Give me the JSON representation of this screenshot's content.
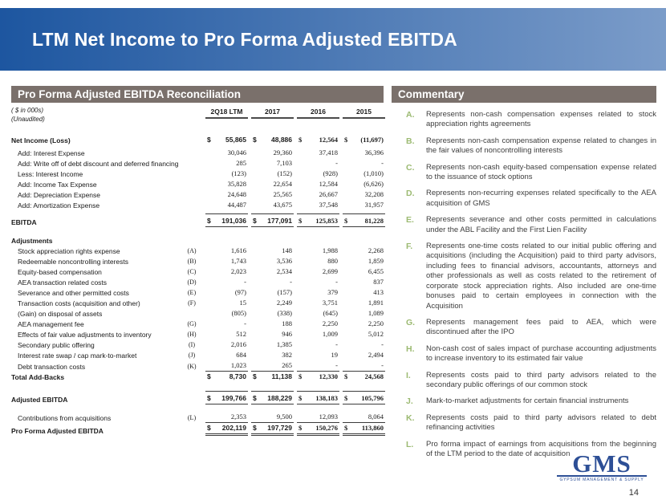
{
  "slide": {
    "title": "LTM Net Income to Pro Forma Adjusted EBITDA"
  },
  "colors": {
    "banner_start": "#1d56a0",
    "banner_end": "#7b9cc9",
    "section_header_bg": "#7a706b",
    "letter_green": "#9cba72",
    "logo_blue": "#2d4f96"
  },
  "table": {
    "header": "Pro Forma Adjusted EBITDA Reconciliation",
    "units_note": "( $ in 000s)",
    "unaudited_note": "(Unaudited)",
    "columns": [
      "2Q18 LTM",
      "2017",
      "2016",
      "2015"
    ],
    "rows": [
      {
        "type": "spacer",
        "h": 12
      },
      {
        "type": "data",
        "label": "Net Income (Loss)",
        "letter": "",
        "values": [
          "55,865",
          "48,886",
          "12,564",
          "(11,697)"
        ],
        "dollar": true,
        "bold": true
      },
      {
        "type": "spacer",
        "h": 3
      },
      {
        "type": "data",
        "label": "Add: Interest Expense",
        "letter": "",
        "indent": 1,
        "values": [
          "30,046",
          "29,360",
          "37,418",
          "36,396"
        ]
      },
      {
        "type": "data",
        "label": "Add: Write off of debt discount and deferred financing fees",
        "letter": "",
        "indent": 1,
        "values": [
          "285",
          "7,103",
          "-",
          "-"
        ]
      },
      {
        "type": "data",
        "label": "Less: Interest Income",
        "letter": "",
        "indent": 1,
        "values": [
          "(123)",
          "(152)",
          "(928)",
          "(1,010)"
        ]
      },
      {
        "type": "data",
        "label": "Add: Income Tax Expense",
        "letter": "",
        "indent": 1,
        "values": [
          "35,828",
          "22,654",
          "12,584",
          "(6,626)"
        ]
      },
      {
        "type": "data",
        "label": "Add: Depreciation Expense",
        "letter": "",
        "indent": 1,
        "values": [
          "24,648",
          "25,565",
          "26,667",
          "32,208"
        ]
      },
      {
        "type": "data",
        "label": "Add: Amortization Expense",
        "letter": "",
        "indent": 1,
        "values": [
          "44,487",
          "43,675",
          "37,548",
          "31,957"
        ]
      },
      {
        "type": "data",
        "label": "EBITDA",
        "letter": "",
        "values": [
          "191,036",
          "177,091",
          "125,853",
          "81,228"
        ],
        "dollar": true,
        "bold": true,
        "rule_above": true,
        "rule_below": true,
        "mt": 4
      },
      {
        "type": "spacer",
        "h": 10
      },
      {
        "type": "section",
        "label": "Adjustments"
      },
      {
        "type": "data",
        "label": "Stock appreciation rights expense",
        "letter": "(A)",
        "indent": 1,
        "values": [
          "1,616",
          "148",
          "1,988",
          "2,268"
        ]
      },
      {
        "type": "data",
        "label": "Redeemable noncontrolling interests",
        "letter": "(B)",
        "indent": 1,
        "values": [
          "1,743",
          "3,536",
          "880",
          "1,859"
        ]
      },
      {
        "type": "data",
        "label": "Equity-based compensation",
        "letter": "(C)",
        "indent": 1,
        "values": [
          "2,023",
          "2,534",
          "2,699",
          "6,455"
        ]
      },
      {
        "type": "data",
        "label": "AEA transaction related costs",
        "letter": "(D)",
        "indent": 1,
        "values": [
          "-",
          "-",
          "-",
          "837"
        ]
      },
      {
        "type": "data",
        "label": "Severance and other permitted costs",
        "letter": "(E)",
        "indent": 1,
        "values": [
          "(97)",
          "(157)",
          "379",
          "413"
        ]
      },
      {
        "type": "data",
        "label": "Transaction costs (acquisition and other)",
        "letter": "(F)",
        "indent": 1,
        "values": [
          "15",
          "2,249",
          "3,751",
          "1,891"
        ]
      },
      {
        "type": "data",
        "label": "(Gain) on disposal of assets",
        "letter": "",
        "indent": 1,
        "values": [
          "(805)",
          "(338)",
          "(645)",
          "1,089"
        ]
      },
      {
        "type": "data",
        "label": "AEA management fee",
        "letter": "(G)",
        "indent": 1,
        "values": [
          "-",
          "188",
          "2,250",
          "2,250"
        ]
      },
      {
        "type": "data",
        "label": "Effects of fair value adjustments to inventory",
        "letter": "(H)",
        "indent": 1,
        "values": [
          "512",
          "946",
          "1,009",
          "5,012"
        ]
      },
      {
        "type": "data",
        "label": "Secondary public offering",
        "letter": "(I)",
        "indent": 1,
        "values": [
          "2,016",
          "1,385",
          "-",
          "-"
        ]
      },
      {
        "type": "data",
        "label": "Interest rate swap / cap mark-to-market",
        "letter": "(J)",
        "indent": 1,
        "values": [
          "684",
          "382",
          "19",
          "2,494"
        ]
      },
      {
        "type": "data",
        "label": "Debt transaction costs",
        "letter": "(K)",
        "indent": 1,
        "values": [
          "1,023",
          "265",
          "-",
          "-"
        ],
        "rule_below": true
      },
      {
        "type": "data",
        "label": "Total Add-Backs",
        "letter": "",
        "values": [
          "8,730",
          "11,138",
          "12,330",
          "24,568"
        ],
        "dollar": true,
        "bold": true
      },
      {
        "type": "spacer",
        "h": 11
      },
      {
        "type": "data",
        "label": "Adjusted EBITDA",
        "letter": "",
        "values": [
          "199,766",
          "188,229",
          "138,183",
          "105,796"
        ],
        "dollar": true,
        "bold": true,
        "rule_above": true,
        "rule_below": true
      },
      {
        "type": "spacer",
        "h": 9
      },
      {
        "type": "data",
        "label": "Contributions from acquisitions",
        "letter": "(L)",
        "indent": 1,
        "values": [
          "2,353",
          "9,500",
          "12,093",
          "8,064"
        ],
        "rule_below": true
      },
      {
        "type": "data",
        "label": "Pro Forma Adjusted EBITDA",
        "letter": "",
        "values": [
          "202,119",
          "197,729",
          "150,276",
          "113,860"
        ],
        "dollar": true,
        "bold": true,
        "double_below": true
      }
    ]
  },
  "commentary": {
    "header": "Commentary",
    "items": [
      {
        "letter": "A.",
        "text": "Represents non-cash compensation expenses related to stock appreciation rights agreements"
      },
      {
        "letter": "B.",
        "text": "Represents non-cash compensation expense related to changes in the fair values of noncontrolling interests"
      },
      {
        "letter": "C.",
        "text": "Represents non-cash equity-based compensation expense related to the issuance of stock options"
      },
      {
        "letter": "D.",
        "text": "Represents non-recurring expenses related specifically to the AEA acquisition of GMS"
      },
      {
        "letter": "E.",
        "text": "Represents severance and other costs permitted in calculations under the ABL Facility and the First Lien Facility"
      },
      {
        "letter": "F.",
        "text": "Represents one-time costs related to our initial public offering and acquisitions (including the Acquisition) paid to third party advisors, including fees to financial advisors, accountants, attorneys and other professionals as well as costs related to the retirement of corporate stock appreciation rights. Also included are one-time bonuses paid to certain employees in connection with the Acquisition"
      },
      {
        "letter": "G.",
        "text": "Represents management fees paid to AEA, which were discontinued after the IPO"
      },
      {
        "letter": "H.",
        "text": "Non-cash cost of sales impact of purchase accounting adjustments to increase inventory to its estimated fair value"
      },
      {
        "letter": "I.",
        "text": "Represents costs paid to third party advisors related to the secondary public offerings of our common stock"
      },
      {
        "letter": "J.",
        "text": "Mark-to-market adjustments for certain financial instruments"
      },
      {
        "letter": "K.",
        "text": "Represents costs paid to third party advisors related to debt refinancing activities"
      },
      {
        "letter": "L.",
        "text": "Pro forma impact of earnings from acquisitions from the beginning of the LTM period to the date of acquisition"
      }
    ]
  },
  "footer": {
    "logo_text": "GMS",
    "logo_subtext": "GYPSUM MANAGEMENT & SUPPLY",
    "page_number": "14"
  }
}
